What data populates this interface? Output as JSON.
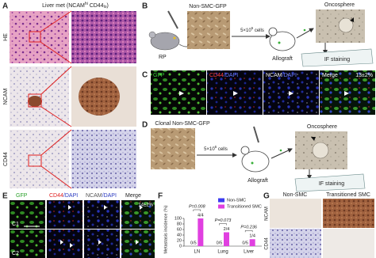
{
  "panel_a": {
    "label": "A",
    "title": [
      "Liver met (NCAM",
      "hi",
      " CD44",
      "lo",
      ")"
    ],
    "rows": [
      "HE",
      "NCAM",
      "CD44"
    ]
  },
  "panel_b": {
    "label": "B",
    "mouse_label": "RP",
    "cells": "Non-SMC-GFP",
    "injection": [
      "5×10",
      "6",
      " cells"
    ],
    "host": "Allograft",
    "result": "Oncosphere",
    "assay": "IF staining"
  },
  "panel_c": {
    "label": "C",
    "channels": [
      [
        "GFP"
      ],
      [
        "CD44",
        "/DAPI"
      ],
      [
        "NCAM",
        "/DAPI"
      ],
      [
        "Merge"
      ]
    ],
    "percent": "13±2%"
  },
  "panel_d": {
    "label": "D",
    "cells": "Clonal Non-SMC-GFP",
    "injection": [
      "5×10",
      "6",
      " cells"
    ],
    "host": "Allograft",
    "result": "Oncosphere",
    "assay": "IF staining"
  },
  "panel_e": {
    "label": "E",
    "channels": [
      [
        "GFP"
      ],
      [
        "CD44",
        "/DAPI"
      ],
      [
        "NCAM",
        "/DAPI"
      ],
      [
        "Merge"
      ]
    ],
    "percent": "14±2%",
    "clones": [
      "C1",
      "C2"
    ]
  },
  "chart_data": {
    "type": "bar",
    "panel_label": "F",
    "y_label": "Metastasis incidence (%)",
    "categories": [
      "LN",
      "Lung",
      "Liver"
    ],
    "series": [
      {
        "name": "Non-SMC",
        "color": "#3b3bf0",
        "values": [
          0,
          0,
          0
        ],
        "value_labels": [
          "0/5",
          "0/5",
          "0/5"
        ]
      },
      {
        "name": "Transitioned SMC",
        "color": "#e040e0",
        "values": [
          100,
          50,
          25
        ],
        "value_labels": [
          "4/4",
          "2/4",
          "1/4"
        ]
      }
    ],
    "annotations": [
      "P=0.008",
      "P=0.073",
      "P=0.236"
    ],
    "ylim": [
      0,
      100
    ],
    "yticks": [
      0,
      20,
      40,
      60,
      80,
      100
    ]
  },
  "panel_g": {
    "label": "G",
    "columns": [
      "Non-SMC",
      "Transitioned SMC"
    ],
    "rows": [
      "NCAM",
      "CD44"
    ]
  }
}
